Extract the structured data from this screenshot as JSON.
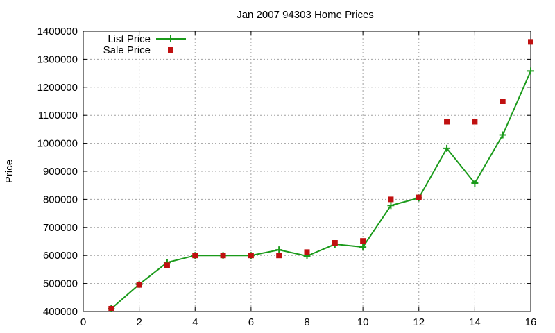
{
  "chart_data": {
    "type": "line",
    "title": "Jan 2007 94303 Home Prices",
    "xlabel": "",
    "ylabel": "Price",
    "xlim": [
      0,
      16
    ],
    "ylim": [
      400000,
      1400000
    ],
    "x_ticks": [
      0,
      2,
      4,
      6,
      8,
      10,
      12,
      14,
      16
    ],
    "y_ticks": [
      400000,
      500000,
      600000,
      700000,
      800000,
      900000,
      1000000,
      1100000,
      1200000,
      1300000,
      1400000
    ],
    "grid": true,
    "legend_position": "top-left",
    "series": [
      {
        "name": "List Price",
        "style": "line-with-plus-points",
        "color": "#1a9a1a",
        "x": [
          1,
          2,
          3,
          4,
          5,
          6,
          7,
          8,
          9,
          10,
          11,
          12,
          13,
          14,
          15,
          16
        ],
        "values": [
          410000,
          497000,
          575000,
          600000,
          600000,
          600000,
          620000,
          598000,
          640000,
          630000,
          778000,
          805000,
          982000,
          858000,
          1030000,
          1258000
        ]
      },
      {
        "name": "Sale Price",
        "style": "square-points",
        "color": "#c01010",
        "x": [
          1,
          2,
          3,
          4,
          5,
          6,
          7,
          8,
          9,
          10,
          11,
          12,
          13,
          14,
          15,
          16
        ],
        "values": [
          410000,
          495000,
          565000,
          600000,
          600000,
          600000,
          600000,
          612000,
          645000,
          652000,
          800000,
          807000,
          1077000,
          1077000,
          1150000,
          1362000
        ]
      }
    ]
  }
}
